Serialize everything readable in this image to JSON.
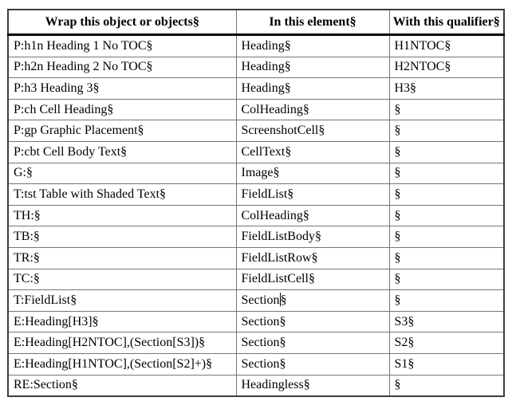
{
  "document": {
    "formatting_mark": "§"
  },
  "table": {
    "headers": [
      "Wrap this object or objects§",
      "In this element§",
      "With this qualifier§"
    ],
    "rows": [
      [
        "P:h1n Heading 1 No TOC§",
        "Heading§",
        "H1NTOC§"
      ],
      [
        "P:h2n Heading 2 No TOC§",
        "Heading§",
        "H2NTOC§"
      ],
      [
        "P:h3 Heading 3§",
        "Heading§",
        "H3§"
      ],
      [
        "P:ch Cell Heading§",
        "ColHeading§",
        "§"
      ],
      [
        "P:gp Graphic Placement§",
        "ScreenshotCell§",
        "§"
      ],
      [
        "P:cbt Cell Body Text§",
        "CellText§",
        "§"
      ],
      [
        "G:§",
        "Image§",
        "§"
      ],
      [
        "T:tst Table with Shaded Text§",
        "FieldList§",
        "§"
      ],
      [
        "TH:§",
        "ColHeading§",
        "§"
      ],
      [
        "TB:§",
        "FieldListBody§",
        "§"
      ],
      [
        "TR:§",
        "FieldListRow§",
        "§"
      ],
      [
        "TC:§",
        "FieldListCell§",
        "§"
      ],
      [
        "T:FieldList§",
        "Section§",
        "§"
      ],
      [
        "E:Heading[H3]§",
        "Section§",
        "S3§"
      ],
      [
        "E:Heading[H2NTOC],(Section[S3])§",
        "Section§",
        "S2§"
      ],
      [
        "E:Heading[H1NTOC],(Section[S2]+)§",
        "Section§",
        "S1§"
      ],
      [
        "RE:Section§",
        "Headingless§",
        "§"
      ]
    ],
    "text_cursor": {
      "row": 12,
      "col": 1,
      "before": "Section",
      "after": "§"
    },
    "colors": {
      "background": "#ffffff",
      "text": "#000000",
      "grid_line": "#767676",
      "outer_border": "#3d3d3d",
      "header_rule": "#000000"
    }
  }
}
